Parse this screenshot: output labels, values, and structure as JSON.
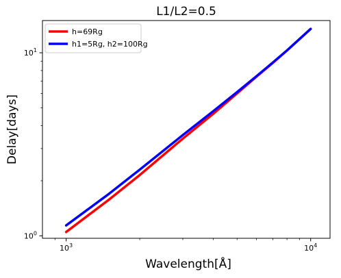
{
  "chart_data": {
    "type": "line",
    "title": "L1/L2=0.5",
    "xlabel": "Wavelength[Å]",
    "ylabel": "Delay[days]",
    "xscale": "log",
    "yscale": "log",
    "xlim": [
      800,
      12000
    ],
    "ylim": [
      0.97,
      15
    ],
    "x_ticks": [
      {
        "value": 1000,
        "base": "10",
        "exp": "3"
      },
      {
        "value": 10000,
        "base": "10",
        "exp": "4"
      }
    ],
    "y_ticks": [
      {
        "value": 1,
        "base": "10",
        "exp": "0"
      },
      {
        "value": 10,
        "base": "10",
        "exp": "1"
      }
    ],
    "grid": false,
    "legend_position": "top-left",
    "series": [
      {
        "name": "h=69Rg",
        "color": "#ff0000",
        "x": [
          1000,
          1500,
          2000,
          3000,
          4000,
          5000,
          6000,
          7000,
          8000,
          10000
        ],
        "y": [
          1.05,
          1.58,
          2.15,
          3.4,
          4.65,
          6.0,
          7.4,
          8.8,
          10.3,
          13.5
        ]
      },
      {
        "name": "h1=5Rg, h2=100Rg",
        "color": "#0000ff",
        "x": [
          1000,
          1500,
          2000,
          3000,
          4000,
          5000,
          6000,
          7000,
          8000,
          10000
        ],
        "y": [
          1.14,
          1.7,
          2.3,
          3.55,
          4.8,
          6.1,
          7.45,
          8.85,
          10.3,
          13.5
        ]
      }
    ]
  }
}
